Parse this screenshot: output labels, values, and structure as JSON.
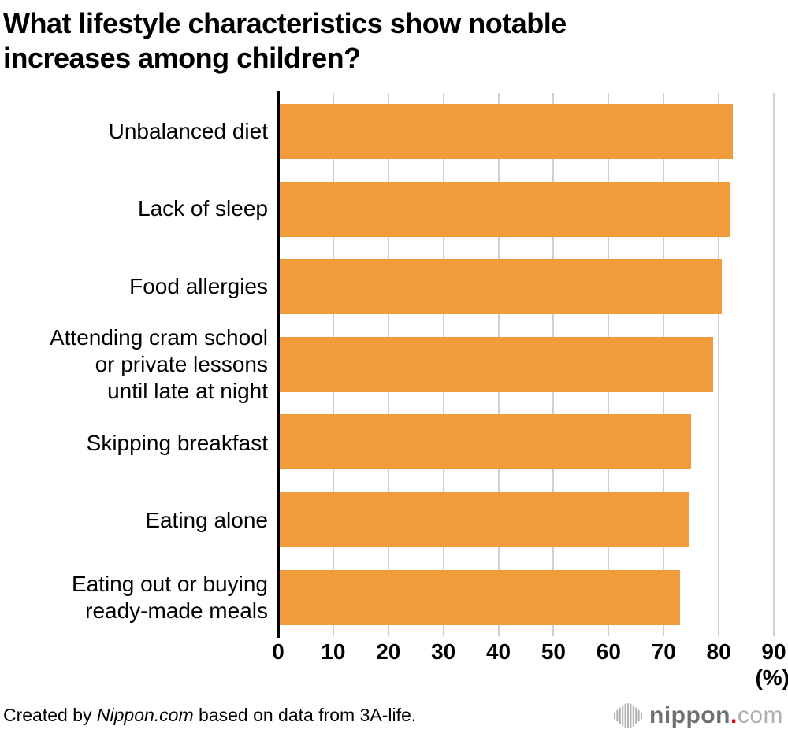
{
  "title": {
    "line1": "What lifestyle characteristics show notable",
    "line2": "increases among children?"
  },
  "chart_data": {
    "type": "bar",
    "orientation": "horizontal",
    "title": "What lifestyle characteristics show notable increases among children?",
    "categories": [
      "Unbalanced diet",
      "Lack of sleep",
      "Food allergies",
      "Attending cram school or private lessons until late at night",
      "Skipping breakfast",
      "Eating alone",
      "Eating out or buying ready-made meals"
    ],
    "display_lines": [
      [
        "Unbalanced diet"
      ],
      [
        "Lack of sleep"
      ],
      [
        "Food allergies"
      ],
      [
        "Attending cram school",
        "or private lessons",
        "until late at night"
      ],
      [
        "Skipping breakfast"
      ],
      [
        "Eating alone"
      ],
      [
        "Eating out or buying",
        "ready-made meals"
      ]
    ],
    "values": [
      82.5,
      82,
      80.5,
      79,
      75,
      74.5,
      73
    ],
    "xlim": [
      0,
      90
    ],
    "xticks": [
      0,
      10,
      20,
      30,
      40,
      50,
      60,
      70,
      80,
      90
    ],
    "unit_label": "(%)",
    "xlabel": "(%)",
    "ylabel": "",
    "grid": true,
    "legend": false,
    "bar_color": "#F09C3C",
    "gridline_color": "#CFCFCF",
    "axis_color": "#000000"
  },
  "footer": {
    "credit_prefix": "Created by ",
    "credit_source": "Nippon.com",
    "credit_suffix": " based on data from 3A-life.",
    "logo": {
      "icon": "soundwave-icon",
      "name": "nippon",
      "dot": ".",
      "tld": "com",
      "name_color": "#6F6F6F",
      "dot_color": "#E60012",
      "tld_color": "#B0B0B0"
    }
  }
}
